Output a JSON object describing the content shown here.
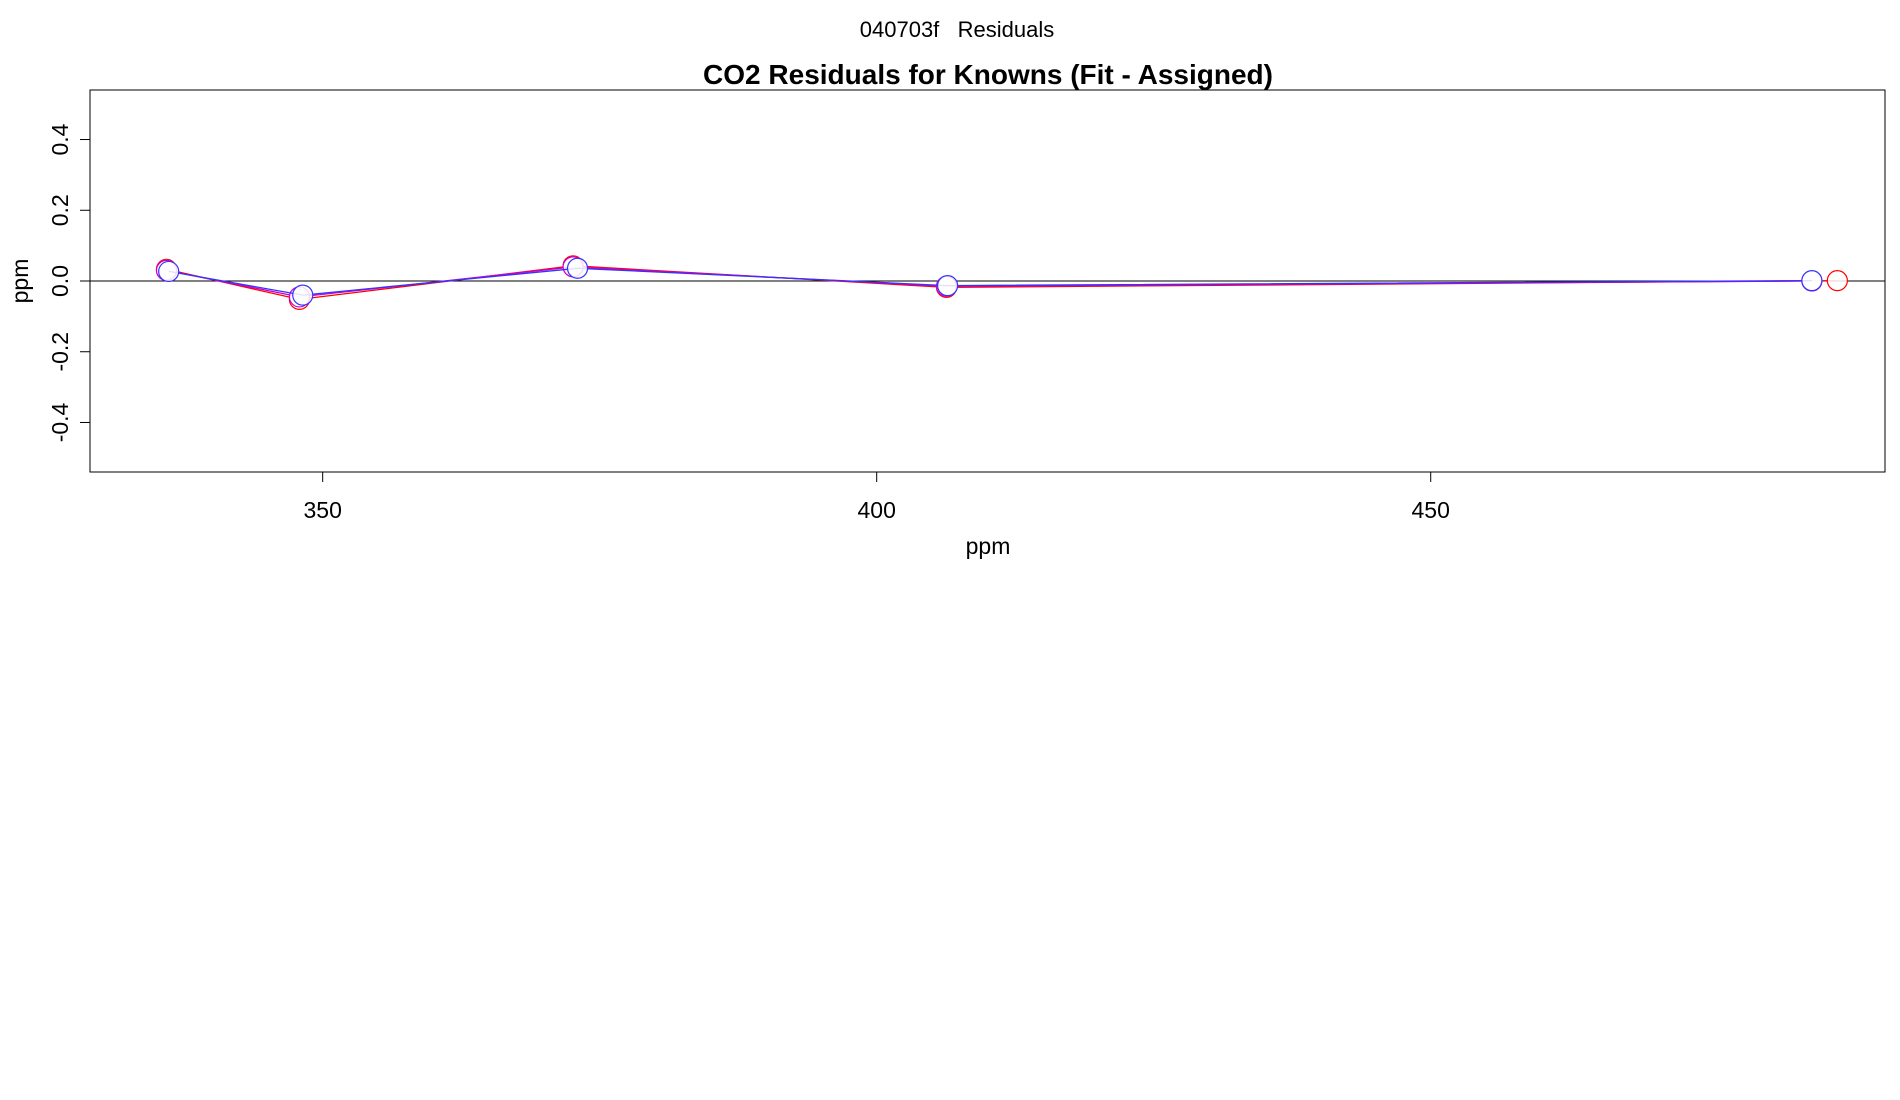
{
  "page": {
    "suptitle": "040703f   Residuals"
  },
  "chart_data": {
    "type": "line",
    "title": "CO2 Residuals for Knowns (Fit - Assigned)",
    "xlabel": "ppm",
    "ylabel": "ppm",
    "xlim": [
      329,
      491
    ],
    "ylim": [
      -0.54,
      0.54
    ],
    "xticks": [
      350,
      400,
      450
    ],
    "yticks": [
      -0.4,
      -0.2,
      0.0,
      0.2,
      0.4
    ],
    "ytick_labels": [
      "-0.4",
      "-0.2",
      "0.0",
      "0.2",
      "0.4"
    ],
    "reference_line": 0.0,
    "grid": false,
    "series": [
      {
        "color": "#ff0000",
        "points": [
          {
            "x": 335.9,
            "y": 0.033
          },
          {
            "x": 347.9,
            "y": -0.052
          },
          {
            "x": 372.6,
            "y": 0.043
          },
          {
            "x": 406.3,
            "y": -0.018
          },
          {
            "x": 486.7,
            "y": 0.001
          }
        ]
      },
      {
        "color": "#cc00cc",
        "points": [
          {
            "x": 335.9,
            "y": 0.03
          },
          {
            "x": 347.9,
            "y": -0.045
          },
          {
            "x": 372.6,
            "y": 0.04
          },
          {
            "x": 406.3,
            "y": -0.015
          },
          {
            "x": 484.4,
            "y": 0.0
          }
        ]
      },
      {
        "color": "#3333ff",
        "points": [
          {
            "x": 336.1,
            "y": 0.027
          },
          {
            "x": 348.2,
            "y": -0.04
          },
          {
            "x": 373.0,
            "y": 0.036
          },
          {
            "x": 406.4,
            "y": -0.013
          },
          {
            "x": 484.4,
            "y": 0.001
          }
        ]
      }
    ]
  }
}
